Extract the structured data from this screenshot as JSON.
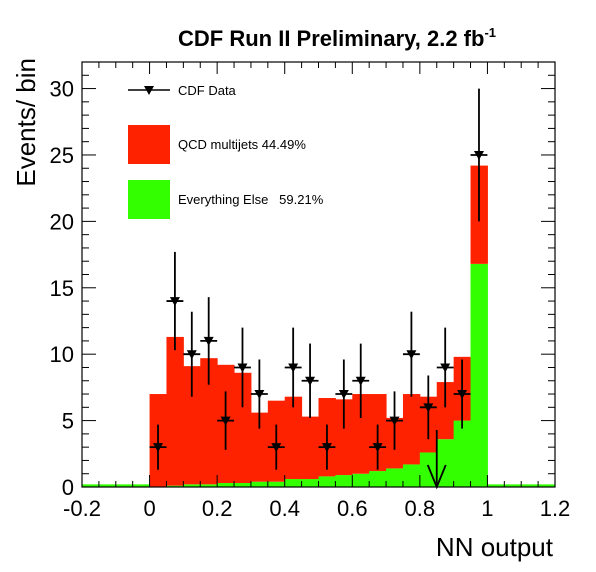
{
  "chart_data": {
    "type": "bar",
    "title": "CDF Run II Preliminary, 2.2 fb",
    "title_sup": "-1",
    "xlabel": "NN output",
    "ylabel": "Events/ bin",
    "xlim": [
      -0.2,
      1.2
    ],
    "ylim": [
      0,
      32
    ],
    "x_ticks": [
      "-0.2",
      "0",
      "0.2",
      "0.4",
      "0.6",
      "0.8",
      "1",
      "1.2"
    ],
    "x_tick_values": [
      -0.2,
      0,
      0.2,
      0.4,
      0.6,
      0.8,
      1.0,
      1.2
    ],
    "y_ticks": [
      "0",
      "5",
      "10",
      "15",
      "20",
      "25",
      "30"
    ],
    "y_tick_values": [
      0,
      5,
      10,
      15,
      20,
      25,
      30
    ],
    "bin_width": 0.05,
    "bin_lows": [
      -0.2,
      -0.15,
      -0.1,
      -0.05,
      0.0,
      0.05,
      0.1,
      0.15,
      0.2,
      0.25,
      0.3,
      0.35,
      0.4,
      0.45,
      0.5,
      0.55,
      0.6,
      0.65,
      0.7,
      0.75,
      0.8,
      0.85,
      0.9,
      0.95,
      1.0,
      1.05,
      1.1,
      1.15
    ],
    "series": [
      {
        "name": "Everything Else",
        "kind": "stack",
        "color": "#33ff00",
        "values": [
          0.2,
          0.2,
          0.2,
          0.2,
          0.0,
          0.1,
          0.2,
          0.2,
          0.3,
          0.3,
          0.4,
          0.4,
          0.6,
          0.6,
          0.8,
          0.9,
          1.0,
          1.2,
          1.4,
          1.7,
          2.6,
          3.6,
          5.0,
          16.8,
          0.2,
          0.2,
          0.2,
          0.2
        ]
      },
      {
        "name": "QCD multijets",
        "kind": "stack",
        "color": "#ff2200",
        "values": [
          0.0,
          0.0,
          0.0,
          0.0,
          7.0,
          11.2,
          8.9,
          9.5,
          8.9,
          8.3,
          5.2,
          6.1,
          6.2,
          4.7,
          5.9,
          5.7,
          6.0,
          5.8,
          3.8,
          5.3,
          4.2,
          4.3,
          4.8,
          7.4,
          0.0,
          0.0,
          0.0,
          0.0
        ]
      },
      {
        "name": "CDF Data",
        "kind": "points",
        "color": "#000000",
        "x": [
          0.025,
          0.075,
          0.125,
          0.175,
          0.225,
          0.275,
          0.325,
          0.375,
          0.425,
          0.475,
          0.525,
          0.575,
          0.625,
          0.675,
          0.725,
          0.775,
          0.825,
          0.875,
          0.925,
          0.975
        ],
        "y": [
          3,
          14,
          10,
          11,
          5,
          9,
          7,
          3,
          9,
          8,
          3,
          7,
          8,
          3,
          5,
          10,
          6,
          9,
          7,
          25
        ],
        "err": [
          1.7,
          3.7,
          3.2,
          3.3,
          2.2,
          3.0,
          2.6,
          1.7,
          3.0,
          2.8,
          1.7,
          2.6,
          2.8,
          1.7,
          2.2,
          3.2,
          2.4,
          3.0,
          2.6,
          5.0
        ]
      }
    ],
    "cut_arrow_x": 0.85,
    "legend": {
      "placement": "top-left",
      "entries": [
        {
          "label": "CDF Data",
          "symbol": "point"
        },
        {
          "label": "QCD multijets 44.49%",
          "symbol": "box",
          "color": "#ff2200"
        },
        {
          "label": "Everything Else   59.21%",
          "symbol": "box",
          "color": "#33ff00"
        }
      ]
    },
    "grid": false
  }
}
